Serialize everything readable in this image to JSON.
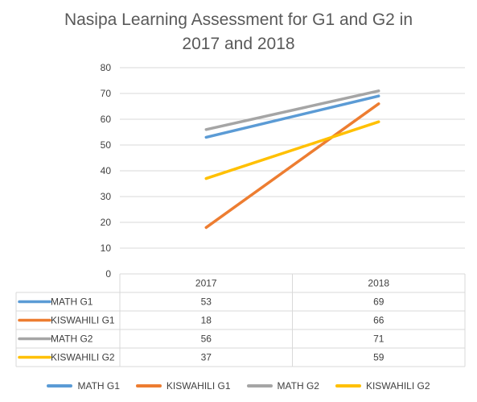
{
  "chart_data": {
    "type": "line",
    "title_lines": [
      "Nasipa Learning Assessment for G1 and G2 in",
      "2017 and 2018"
    ],
    "categories": [
      "2017",
      "2018"
    ],
    "ylim": [
      0,
      80
    ],
    "yticks": [
      0,
      10,
      20,
      30,
      40,
      50,
      60,
      70,
      80
    ],
    "grid": true,
    "legend_position": "bottom",
    "data_table": true,
    "series": [
      {
        "name": "MATH G1",
        "values": [
          53,
          69
        ],
        "color": "#5b9bd5"
      },
      {
        "name": "KISWAHILI G1",
        "values": [
          18,
          66
        ],
        "color": "#ed7d31"
      },
      {
        "name": "MATH G2",
        "values": [
          56,
          71
        ],
        "color": "#a5a5a5"
      },
      {
        "name": "KISWAHILI G2",
        "values": [
          37,
          59
        ],
        "color": "#ffc000"
      }
    ]
  }
}
